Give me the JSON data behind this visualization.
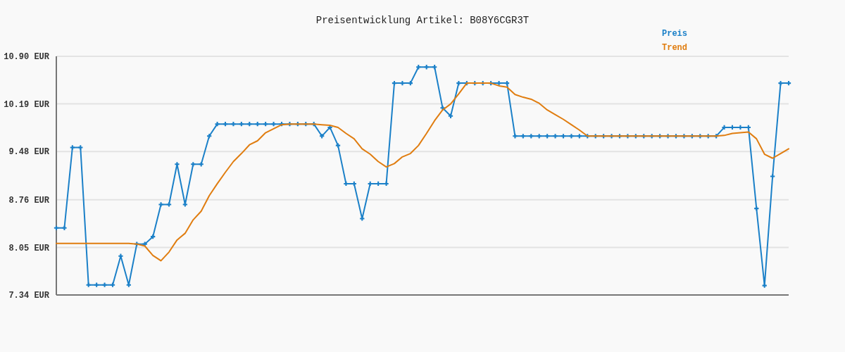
{
  "chart_data": {
    "type": "line",
    "title": "Preisentwicklung Artikel: B08Y6CGR3T",
    "categories": [
      null,
      null,
      null,
      null,
      null,
      null,
      null,
      null,
      null,
      null,
      null,
      null,
      null,
      null,
      null,
      null,
      null,
      null,
      null,
      null,
      null,
      null,
      null,
      null,
      null,
      null,
      null,
      null,
      null,
      null,
      null,
      null,
      null,
      null,
      null,
      null,
      null,
      null,
      null,
      null,
      null,
      null,
      null,
      null,
      null,
      null,
      null,
      null,
      null,
      null,
      null,
      null,
      null,
      null,
      null,
      null,
      null,
      null,
      null,
      null,
      null,
      null,
      null,
      null,
      null,
      null,
      null,
      null,
      null,
      null,
      null,
      null,
      null,
      null,
      null,
      null,
      null,
      null,
      null,
      null,
      null,
      null,
      null,
      null,
      null,
      null,
      null,
      null,
      null,
      null,
      null,
      null
    ],
    "series": [
      {
        "name": "Preis",
        "color": "#1b80c8",
        "marker": "cross",
        "values": [
          8.34,
          8.34,
          9.54,
          9.54,
          7.49,
          7.49,
          7.49,
          7.49,
          7.92,
          7.49,
          8.1,
          8.1,
          8.21,
          8.69,
          8.69,
          9.29,
          8.69,
          9.29,
          9.29,
          9.71,
          9.89,
          9.89,
          9.89,
          9.89,
          9.89,
          9.89,
          9.89,
          9.89,
          9.89,
          9.89,
          9.89,
          9.89,
          9.89,
          9.71,
          9.84,
          9.57,
          9.0,
          9.0,
          8.48,
          9.0,
          9.0,
          9.0,
          10.5,
          10.5,
          10.5,
          10.74,
          10.74,
          10.74,
          10.13,
          10.01,
          10.5,
          10.5,
          10.5,
          10.5,
          10.5,
          10.5,
          10.5,
          9.71,
          9.71,
          9.71,
          9.71,
          9.71,
          9.71,
          9.71,
          9.71,
          9.71,
          9.71,
          9.71,
          9.71,
          9.71,
          9.71,
          9.71,
          9.71,
          9.71,
          9.71,
          9.71,
          9.71,
          9.71,
          9.71,
          9.71,
          9.71,
          9.71,
          9.71,
          9.84,
          9.84,
          9.84,
          9.84,
          8.63,
          7.48,
          9.11,
          10.5,
          10.5
        ]
      },
      {
        "name": "Trend",
        "color": "#e07d10",
        "marker": "none",
        "values": [
          8.11,
          8.11,
          8.11,
          8.11,
          8.11,
          8.11,
          8.11,
          8.11,
          8.11,
          8.11,
          8.1,
          8.07,
          7.93,
          7.85,
          7.98,
          8.16,
          8.26,
          8.46,
          8.59,
          8.82,
          9.0,
          9.17,
          9.33,
          9.45,
          9.58,
          9.64,
          9.76,
          9.82,
          9.88,
          9.89,
          9.89,
          9.89,
          9.89,
          9.88,
          9.87,
          9.84,
          9.75,
          9.67,
          9.52,
          9.44,
          9.33,
          9.25,
          9.3,
          9.4,
          9.45,
          9.57,
          9.75,
          9.94,
          10.1,
          10.19,
          10.34,
          10.5,
          10.5,
          10.5,
          10.5,
          10.46,
          10.44,
          10.33,
          10.29,
          10.26,
          10.2,
          10.1,
          10.03,
          9.96,
          9.88,
          9.8,
          9.71,
          9.71,
          9.71,
          9.71,
          9.71,
          9.71,
          9.71,
          9.71,
          9.71,
          9.71,
          9.71,
          9.71,
          9.71,
          9.71,
          9.71,
          9.71,
          9.71,
          9.72,
          9.75,
          9.76,
          9.77,
          9.67,
          9.44,
          9.38,
          9.45,
          9.52
        ]
      }
    ],
    "ylim": [
      7.34,
      10.9
    ],
    "yticks": [
      {
        "value": 7.34,
        "label": "7.34 EUR"
      },
      {
        "value": 8.05,
        "label": "8.05 EUR"
      },
      {
        "value": 8.76,
        "label": "8.76 EUR"
      },
      {
        "value": 9.48,
        "label": "9.48 EUR"
      },
      {
        "value": 10.19,
        "label": "10.19 EUR"
      },
      {
        "value": 10.9,
        "label": "10.90 EUR"
      }
    ],
    "grid": "y",
    "legend": "top right",
    "tick_labels": "y"
  }
}
